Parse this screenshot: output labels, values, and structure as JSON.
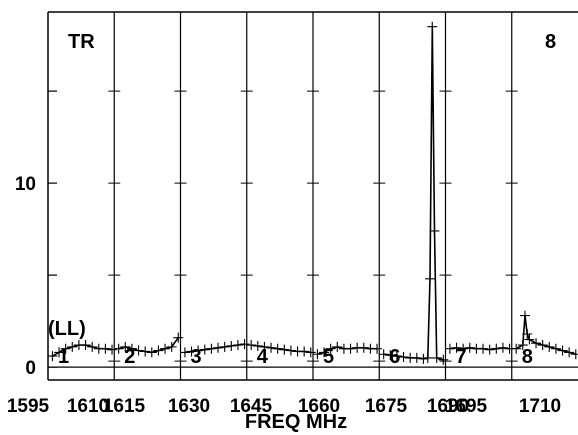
{
  "chart_data": {
    "type": "line",
    "xlabel": "FREQ MHz",
    "ylabel": "",
    "x_tick_labels": [
      "1595",
      "1610",
      "1615",
      "1630",
      "1645",
      "1660",
      "1675",
      "1690",
      "1695",
      "1710"
    ],
    "y_tick_labels": [
      "0",
      "10"
    ],
    "ylim": [
      -0.7,
      19.3
    ],
    "annotations": {
      "top_left": "TR",
      "top_right": "8",
      "polarization": "(LL)"
    },
    "panels": [
      {
        "label": "1",
        "x_start": 1595,
        "x_end": 1610,
        "x": [
          1596,
          1597.5,
          1599,
          1600.5,
          1602,
          1603.5,
          1605,
          1606.5,
          1608,
          1609.5
        ],
        "y": [
          0.6,
          0.8,
          1.0,
          1.1,
          1.2,
          1.2,
          1.1,
          1.0,
          1.0,
          0.95
        ]
      },
      {
        "label": "2",
        "x_start": 1610,
        "x_end": 1625,
        "x": [
          1611,
          1612.5,
          1614,
          1615.5,
          1617,
          1618.5,
          1620,
          1621.5,
          1623,
          1624.5
        ],
        "y": [
          1.0,
          1.1,
          1.0,
          0.9,
          0.85,
          0.8,
          0.9,
          1.0,
          1.1,
          1.6
        ]
      },
      {
        "label": "3",
        "x_start": 1625,
        "x_end": 1640,
        "x": [
          1626,
          1627.5,
          1629,
          1630.5,
          1632,
          1633.5,
          1635,
          1636.5,
          1638,
          1639.5
        ],
        "y": [
          0.8,
          0.85,
          0.9,
          0.95,
          1.0,
          1.05,
          1.1,
          1.15,
          1.2,
          1.25
        ]
      },
      {
        "label": "4",
        "x_start": 1640,
        "x_end": 1655,
        "x": [
          1641,
          1642.5,
          1644,
          1645.5,
          1647,
          1648.5,
          1650,
          1651.5,
          1653,
          1654.5
        ],
        "y": [
          1.2,
          1.15,
          1.1,
          1.05,
          1.0,
          0.95,
          0.9,
          0.85,
          0.85,
          0.8
        ]
      },
      {
        "label": "5",
        "x_start": 1655,
        "x_end": 1670,
        "x": [
          1656,
          1657.5,
          1659,
          1660.5,
          1662,
          1663.5,
          1665,
          1666.5,
          1668,
          1669.5
        ],
        "y": [
          0.7,
          0.8,
          1.0,
          1.1,
          1.0,
          1.0,
          1.05,
          1.05,
          1.0,
          1.0
        ]
      },
      {
        "label": "6",
        "x_start": 1670,
        "x_end": 1685,
        "x": [
          1671,
          1672.5,
          1674,
          1675.5,
          1677,
          1678.5,
          1680,
          1681,
          1681.5,
          1682,
          1682.5,
          1683,
          1684.5
        ],
        "y": [
          0.7,
          0.65,
          0.6,
          0.55,
          0.5,
          0.5,
          0.45,
          0.5,
          4.8,
          18.5,
          7.4,
          0.5,
          0.4
        ]
      },
      {
        "label": "7",
        "x_start": 1685,
        "x_end": 1700,
        "x": [
          1686,
          1687.5,
          1689,
          1690.5,
          1692,
          1693.5,
          1695,
          1696.5,
          1698,
          1699.5
        ],
        "y": [
          1.0,
          1.05,
          1.0,
          1.05,
          1.0,
          1.0,
          0.95,
          1.0,
          1.05,
          1.0
        ]
      },
      {
        "label": "8",
        "x_start": 1700,
        "x_end": 1715,
        "x": [
          1701,
          1702.5,
          1703,
          1703.5,
          1704,
          1705.5,
          1707,
          1708.5,
          1710,
          1711.5,
          1713,
          1714.5
        ],
        "y": [
          1.0,
          1.2,
          2.8,
          1.8,
          1.5,
          1.3,
          1.2,
          1.1,
          1.0,
          0.9,
          0.8,
          0.7
        ]
      }
    ]
  }
}
